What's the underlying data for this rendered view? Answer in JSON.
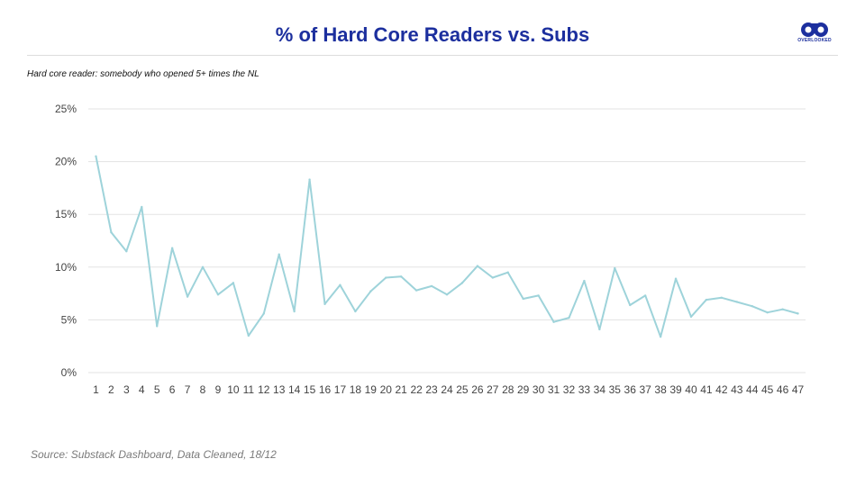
{
  "header": {
    "title": "% of Hard Core Readers vs. Subs",
    "subtitle": "Hard core reader: somebody who opened 5+ times the NL",
    "logo_text": "OVERLOOKED"
  },
  "footer": {
    "source": "Source: Substack Dashboard, Data Cleaned, 18/12"
  },
  "chart_data": {
    "type": "line",
    "x": [
      1,
      2,
      3,
      4,
      5,
      6,
      7,
      8,
      9,
      10,
      11,
      12,
      13,
      14,
      15,
      16,
      17,
      18,
      19,
      20,
      21,
      22,
      23,
      24,
      25,
      26,
      27,
      28,
      29,
      30,
      31,
      32,
      33,
      34,
      35,
      36,
      37,
      38,
      39,
      40,
      41,
      42,
      43,
      44,
      45,
      46,
      47
    ],
    "series": [
      {
        "values": [
          20.5,
          13.3,
          11.5,
          15.7,
          4.4,
          11.8,
          7.2,
          10.0,
          7.4,
          8.5,
          3.5,
          5.6,
          11.2,
          5.8,
          18.3,
          6.5,
          8.3,
          5.8,
          7.7,
          9.0,
          9.1,
          7.8,
          8.2,
          7.4,
          8.5,
          10.1,
          9.0,
          9.5,
          7.0,
          7.3,
          4.8,
          5.2,
          8.7,
          4.1,
          9.9,
          6.4,
          7.3,
          3.4,
          8.9,
          5.3,
          6.9,
          7.1,
          6.7,
          6.3,
          5.7,
          6.0,
          5.6
        ],
        "color": "#9ed3da"
      }
    ],
    "y_ticks": [
      "0%",
      "5%",
      "10%",
      "15%",
      "20%",
      "25%"
    ],
    "ylim": [
      0,
      25
    ],
    "grid": true,
    "legend": "none",
    "title": "% of Hard Core Readers vs. Subs",
    "xlabel": "",
    "ylabel": ""
  },
  "colors": {
    "title": "#1c2f9e",
    "line": "#9ed3da",
    "grid": "#e3e3e3"
  }
}
